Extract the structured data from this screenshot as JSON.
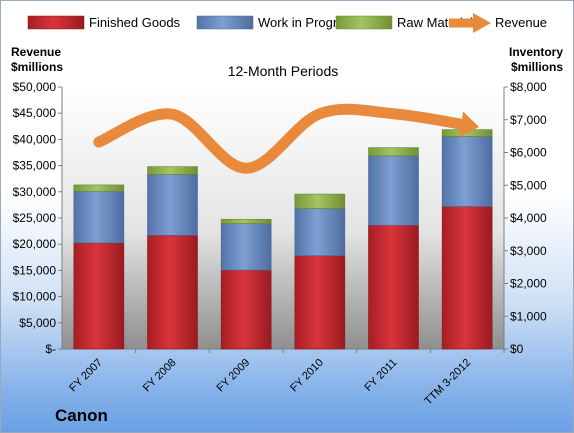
{
  "chart_data": {
    "type": "bar",
    "title": "12-Month Periods",
    "company": "Canon",
    "ylabel_left": [
      "Revenue",
      "$millions"
    ],
    "ylabel_right": [
      "Inventory",
      "$millions"
    ],
    "categories": [
      "FY 2007",
      "FY 2008",
      "FY 2009",
      "FY 2010",
      "FY 2011",
      "TTM 3-2012"
    ],
    "y_left_ticks": [
      "$-",
      "$5,000",
      "$10,000",
      "$15,000",
      "$20,000",
      "$25,000",
      "$30,000",
      "$35,000",
      "$40,000",
      "$45,000",
      "$50,000"
    ],
    "y_right_ticks": [
      "$0",
      "$1,000",
      "$2,000",
      "$3,000",
      "$4,000",
      "$5,000",
      "$6,000",
      "$7,000",
      "$8,000"
    ],
    "ylim_left": [
      0,
      50000
    ],
    "ylim_right": [
      0,
      8000
    ],
    "legend_position": "top",
    "series": [
      {
        "name": "Finished Goods",
        "color": "#c0282e",
        "axis": "right",
        "values": [
          3240,
          3470,
          2410,
          2850,
          3780,
          4350
        ]
      },
      {
        "name": "Work in Progress",
        "color": "#6d8fc4",
        "axis": "right",
        "values": [
          1580,
          1860,
          1420,
          1440,
          2120,
          2140
        ]
      },
      {
        "name": "Raw Materials",
        "color": "#8fb04a",
        "axis": "right",
        "values": [
          190,
          240,
          130,
          440,
          250,
          210
        ]
      },
      {
        "name": "Revenue",
        "color": "#e8893c",
        "axis": "left",
        "type": "line",
        "values": [
          39500,
          44800,
          34500,
          44900,
          44900,
          42700
        ]
      }
    ]
  }
}
